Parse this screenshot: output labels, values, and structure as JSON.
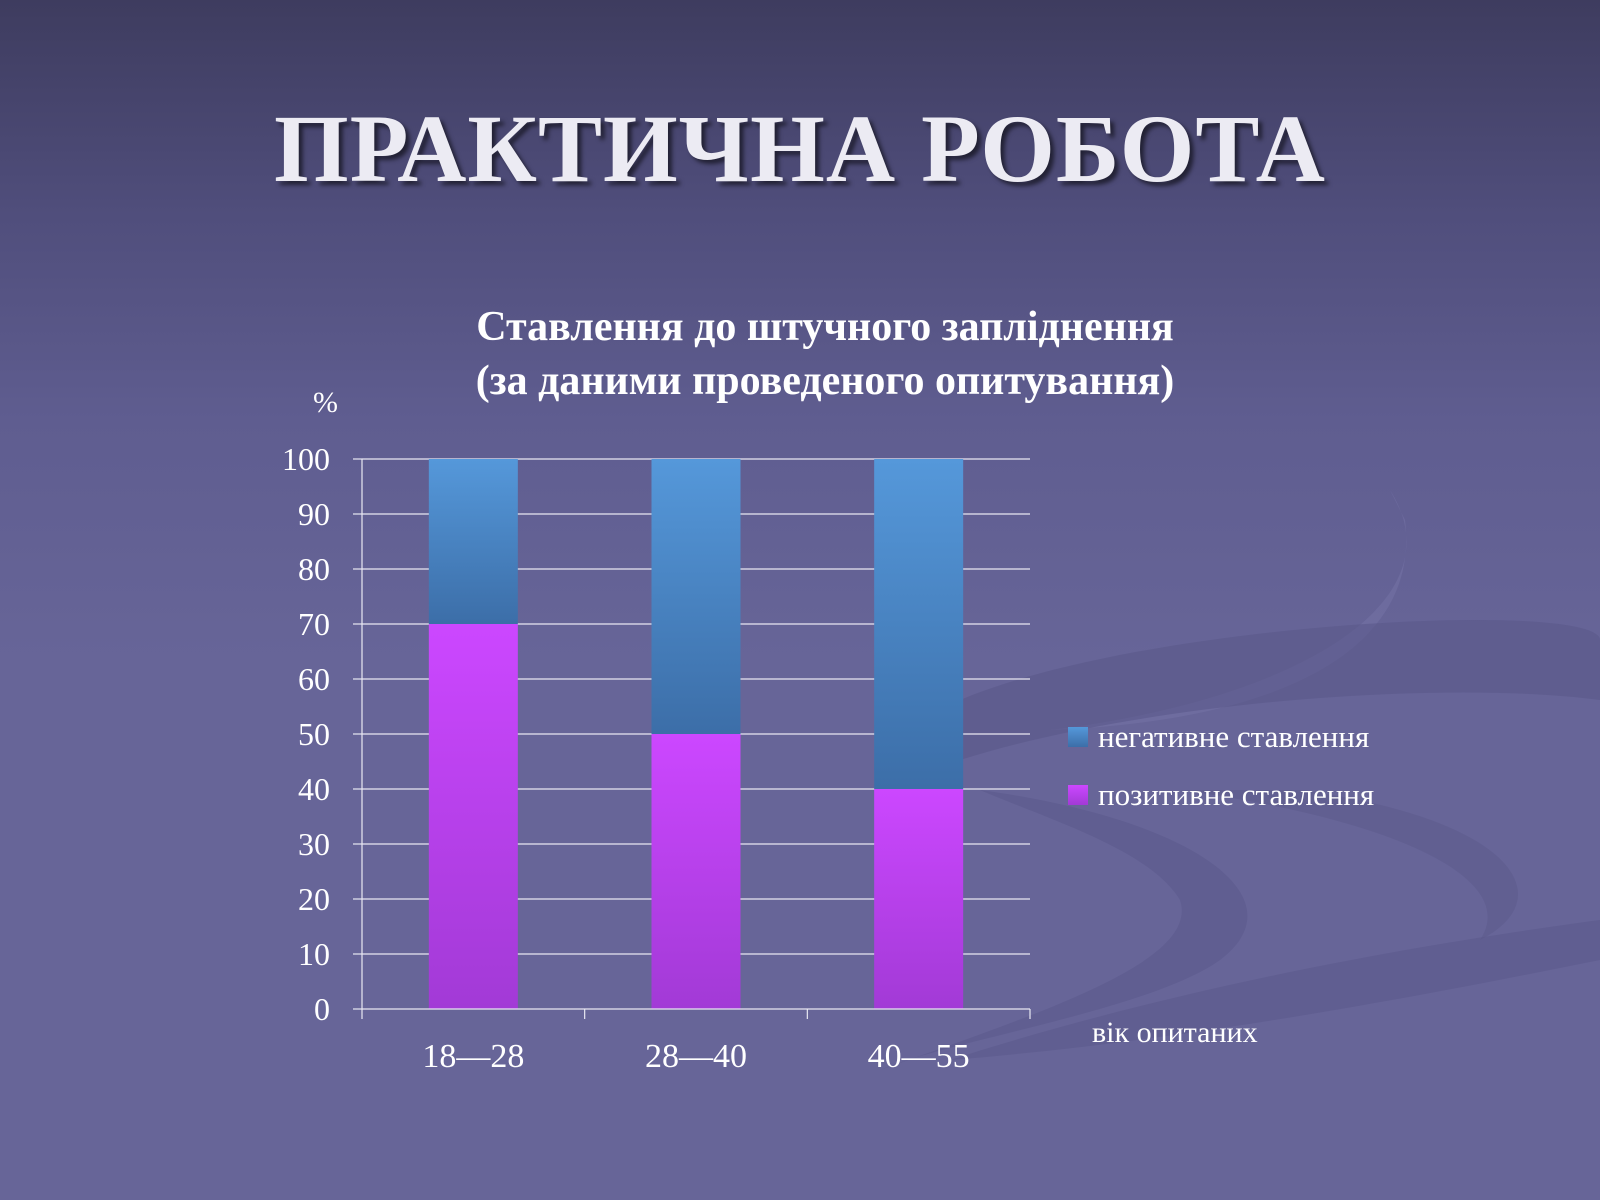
{
  "slide": {
    "title": "ПРАКТИЧНА РОБОТА"
  },
  "chart_data": {
    "type": "bar",
    "stacked": true,
    "title": "Ставлення до штучного запліднення",
    "subtitle": "(за даними проведеного опитування)",
    "xlabel": "вік опитаних",
    "ylabel": "%",
    "categories": [
      "18—28",
      "28—40",
      "40—55"
    ],
    "series": [
      {
        "name": "позитивне ставлення",
        "values": [
          70,
          50,
          40
        ],
        "color": "#c944ff"
      },
      {
        "name": "негативне ставлення",
        "values": [
          30,
          50,
          60
        ],
        "color": "#4f8fd2"
      }
    ],
    "ylim": [
      0,
      100
    ],
    "yticks": [
      0,
      10,
      20,
      30,
      40,
      50,
      60,
      70,
      80,
      90,
      100
    ],
    "grid": true,
    "legend_position": "right",
    "legend_order": [
      "негативне ставлення",
      "позитивне ставлення"
    ]
  }
}
